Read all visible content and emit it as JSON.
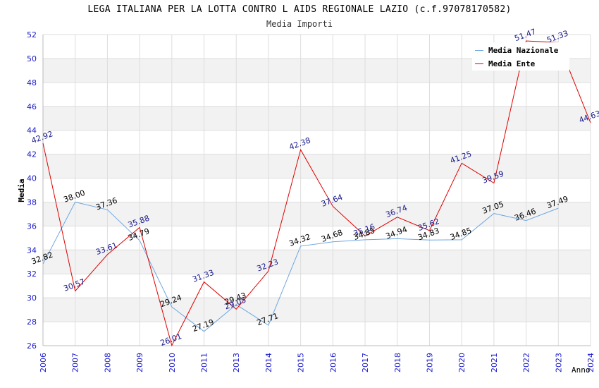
{
  "title": "LEGA ITALIANA PER LA LOTTA CONTRO L AIDS REGIONALE LAZIO (c.f.97078170582)",
  "subtitle": "Media Importi",
  "colors": {
    "series_nazionale": "#6fa8e0",
    "series_ente": "#e00000",
    "label_nazionale": "#000000",
    "label_ente": "#1a1a8c",
    "axis_ticks": "#1a1acc",
    "band": "#f2f2f2",
    "grid": "#dddddd"
  },
  "chart_data": {
    "type": "line",
    "categories": [
      "2006",
      "2007",
      "2008",
      "2009",
      "2010",
      "2011",
      "2013",
      "2014",
      "2015",
      "2016",
      "2017",
      "2018",
      "2019",
      "2020",
      "2021",
      "2022",
      "2023",
      "2024"
    ],
    "xlabel": "Anno",
    "ylabel": "Media",
    "ylim": [
      26,
      52
    ],
    "yticks": [
      26,
      28,
      30,
      32,
      34,
      36,
      38,
      40,
      42,
      44,
      46,
      48,
      50,
      52
    ],
    "grid": true,
    "legend_position": "top-right",
    "series": [
      {
        "name": "Media Nazionale",
        "values": [
          32.82,
          38.0,
          37.36,
          34.79,
          29.24,
          27.19,
          29.43,
          27.71,
          34.32,
          34.68,
          34.85,
          34.94,
          34.83,
          34.85,
          37.05,
          36.46,
          37.49,
          null
        ],
        "labels": [
          "32.82",
          "38.00",
          "37.36",
          "34.79",
          "29.24",
          "27.19",
          "29.43",
          "27.71",
          "34.32",
          "34.68",
          "34.85",
          "34.94",
          "34.83",
          "34.85",
          "37.05",
          "36.46",
          "37.49",
          ""
        ]
      },
      {
        "name": "Media Ente",
        "values": [
          42.92,
          30.57,
          33.61,
          35.88,
          26.01,
          31.33,
          29.05,
          32.23,
          42.38,
          37.64,
          35.16,
          36.74,
          35.62,
          41.25,
          39.59,
          51.47,
          51.33,
          44.63
        ],
        "labels": [
          "42.92",
          "30.57",
          "33.61",
          "35.88",
          "26.01",
          "31.33",
          "29.05",
          "32.23",
          "42.38",
          "37.64",
          "35.16",
          "36.74",
          "35.62",
          "41.25",
          "39.59",
          "51.47",
          "51.33",
          "44.63"
        ]
      }
    ]
  }
}
